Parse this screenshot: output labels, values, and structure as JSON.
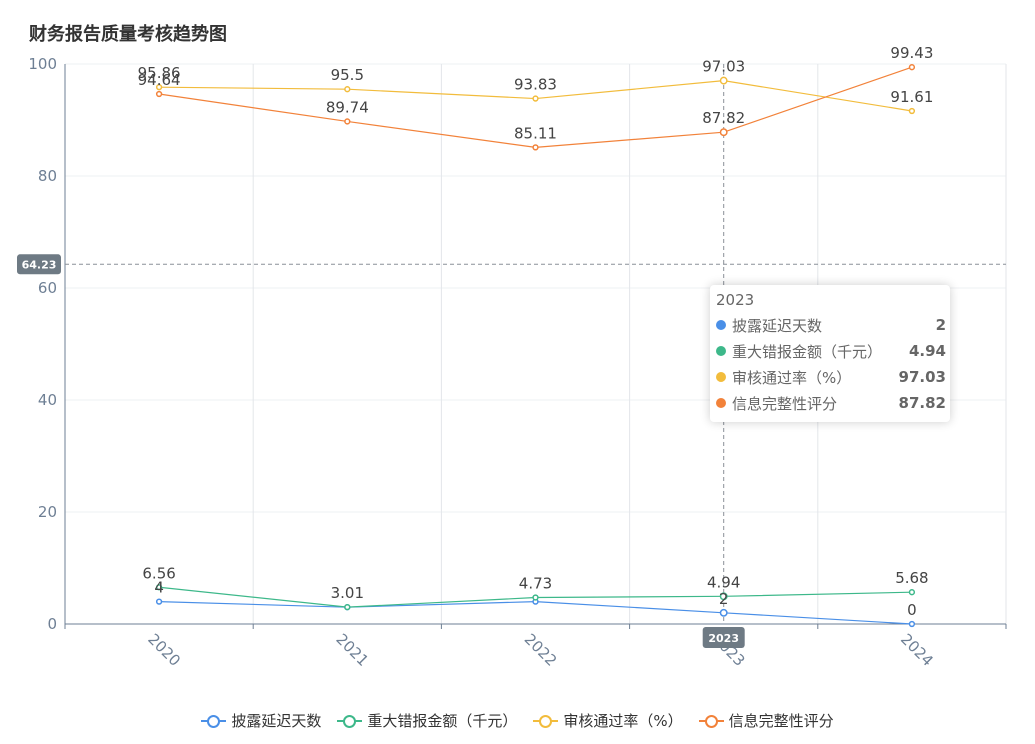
{
  "chart_data": {
    "type": "line",
    "title": "财务报告质量考核趋势图",
    "categories": [
      "2020",
      "2021",
      "2022",
      "2023",
      "2024"
    ],
    "ylim": [
      0,
      100
    ],
    "yticks": [
      0,
      20,
      40,
      60,
      80,
      100
    ],
    "series": [
      {
        "name": "披露延迟天数",
        "color": "#4a8fe7",
        "values": [
          4,
          3,
          4,
          2,
          0
        ],
        "labels": [
          "4",
          "",
          "",
          "2",
          "0"
        ]
      },
      {
        "name": "重大错报金额（千元）",
        "color": "#3db88a",
        "values": [
          6.56,
          3.01,
          4.73,
          4.94,
          5.68
        ],
        "labels": [
          "6.56",
          "3.01",
          "4.73",
          "4.94",
          "5.68"
        ]
      },
      {
        "name": "审核通过率（%）",
        "color": "#f2bc3c",
        "values": [
          95.86,
          95.5,
          93.83,
          97.03,
          91.61
        ],
        "labels": [
          "95.86",
          "95.5",
          "93.83",
          "97.03",
          "91.61"
        ]
      },
      {
        "name": "信息完整性评分",
        "color": "#f2823a",
        "values": [
          94.64,
          89.74,
          85.11,
          87.82,
          99.43
        ],
        "labels": [
          "94.64",
          "89.74",
          "85.11",
          "87.82",
          "99.43"
        ]
      }
    ],
    "crosshair": {
      "y_value_label": "64.23",
      "x_label": "2023"
    }
  },
  "tooltip": {
    "title": "2023",
    "rows": [
      {
        "name": "披露延迟天数",
        "value": "2",
        "color": "#4a8fe7"
      },
      {
        "name": "重大错报金额（千元）",
        "value": "4.94",
        "color": "#3db88a"
      },
      {
        "name": "审核通过率（%）",
        "value": "97.03",
        "color": "#f2bc3c"
      },
      {
        "name": "信息完整性评分",
        "value": "87.82",
        "color": "#f2823a"
      }
    ]
  }
}
